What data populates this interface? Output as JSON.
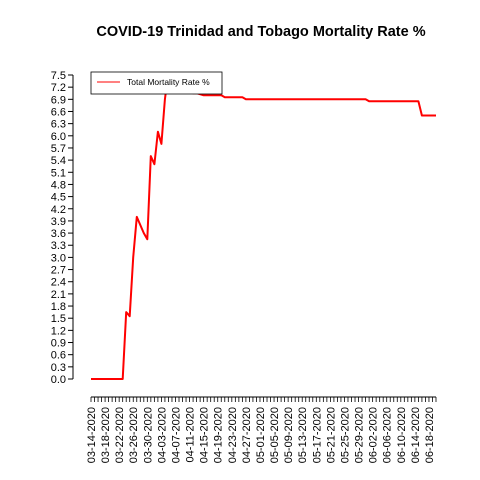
{
  "chart_data": {
    "type": "line",
    "title": "COVID-19 Trinidad and Tobago Mortality Rate %",
    "xlabel": "",
    "ylabel": "",
    "ylim": [
      0,
      7.5
    ],
    "grid": false,
    "legend_position": "top-left",
    "y_ticks": [
      "0.0",
      "0.3",
      "0.6",
      "0.9",
      "1.2",
      "1.5",
      "1.8",
      "2.1",
      "2.4",
      "2.7",
      "3.0",
      "3.3",
      "3.6",
      "3.9",
      "4.2",
      "4.5",
      "4.8",
      "5.1",
      "5.4",
      "5.7",
      "6.0",
      "6.3",
      "6.6",
      "6.9",
      "7.2",
      "7.5"
    ],
    "x_tick_labels": [
      "03-14-2020",
      "03-18-2020",
      "03-22-2020",
      "03-26-2020",
      "03-30-2020",
      "04-03-2020",
      "04-07-2020",
      "04-11-2020",
      "04-15-2020",
      "04-19-2020",
      "04-23-2020",
      "04-27-2020",
      "05-01-2020",
      "05-05-2020",
      "05-09-2020",
      "05-13-2020",
      "05-17-2020",
      "05-21-2020",
      "05-25-2020",
      "05-29-2020",
      "06-02-2020",
      "06-06-2020",
      "06-10-2020",
      "06-14-2020",
      "06-18-2020"
    ],
    "series": [
      {
        "name": "Total Mortality Rate %",
        "color": "#ff0000",
        "x": [
          "03-14-2020",
          "03-15-2020",
          "03-16-2020",
          "03-17-2020",
          "03-18-2020",
          "03-19-2020",
          "03-20-2020",
          "03-21-2020",
          "03-22-2020",
          "03-23-2020",
          "03-24-2020",
          "03-25-2020",
          "03-26-2020",
          "03-27-2020",
          "03-28-2020",
          "03-29-2020",
          "03-30-2020",
          "03-31-2020",
          "04-01-2020",
          "04-02-2020",
          "04-03-2020",
          "04-04-2020",
          "04-05-2020",
          "04-06-2020",
          "04-07-2020",
          "04-08-2020",
          "04-09-2020",
          "04-10-2020",
          "04-11-2020",
          "04-12-2020",
          "04-13-2020",
          "04-15-2020",
          "04-16-2020",
          "04-17-2020",
          "04-18-2020",
          "04-19-2020",
          "04-20-2020",
          "04-21-2020",
          "04-22-2020",
          "04-23-2020",
          "04-24-2020",
          "04-25-2020",
          "04-26-2020",
          "04-27-2020",
          "04-28-2020",
          "05-01-2020",
          "05-10-2020",
          "05-20-2020",
          "05-30-2020",
          "05-31-2020",
          "06-01-2020",
          "06-10-2020",
          "06-14-2020",
          "06-15-2020",
          "06-16-2020",
          "06-20-2020"
        ],
        "values": [
          0.0,
          0.0,
          0.0,
          0.0,
          0.0,
          0.0,
          0.0,
          0.0,
          0.0,
          0.0,
          1.65,
          1.55,
          3.0,
          4.0,
          3.8,
          3.6,
          3.45,
          5.5,
          5.3,
          6.1,
          5.8,
          6.9,
          7.55,
          7.5,
          7.45,
          7.45,
          7.2,
          7.1,
          7.1,
          7.05,
          7.05,
          7.0,
          7.0,
          7.0,
          7.0,
          7.0,
          7.0,
          6.95,
          6.95,
          6.95,
          6.95,
          6.95,
          6.95,
          6.9,
          6.9,
          6.9,
          6.9,
          6.9,
          6.9,
          6.9,
          6.85,
          6.85,
          6.85,
          6.85,
          6.5,
          6.5
        ]
      }
    ]
  }
}
